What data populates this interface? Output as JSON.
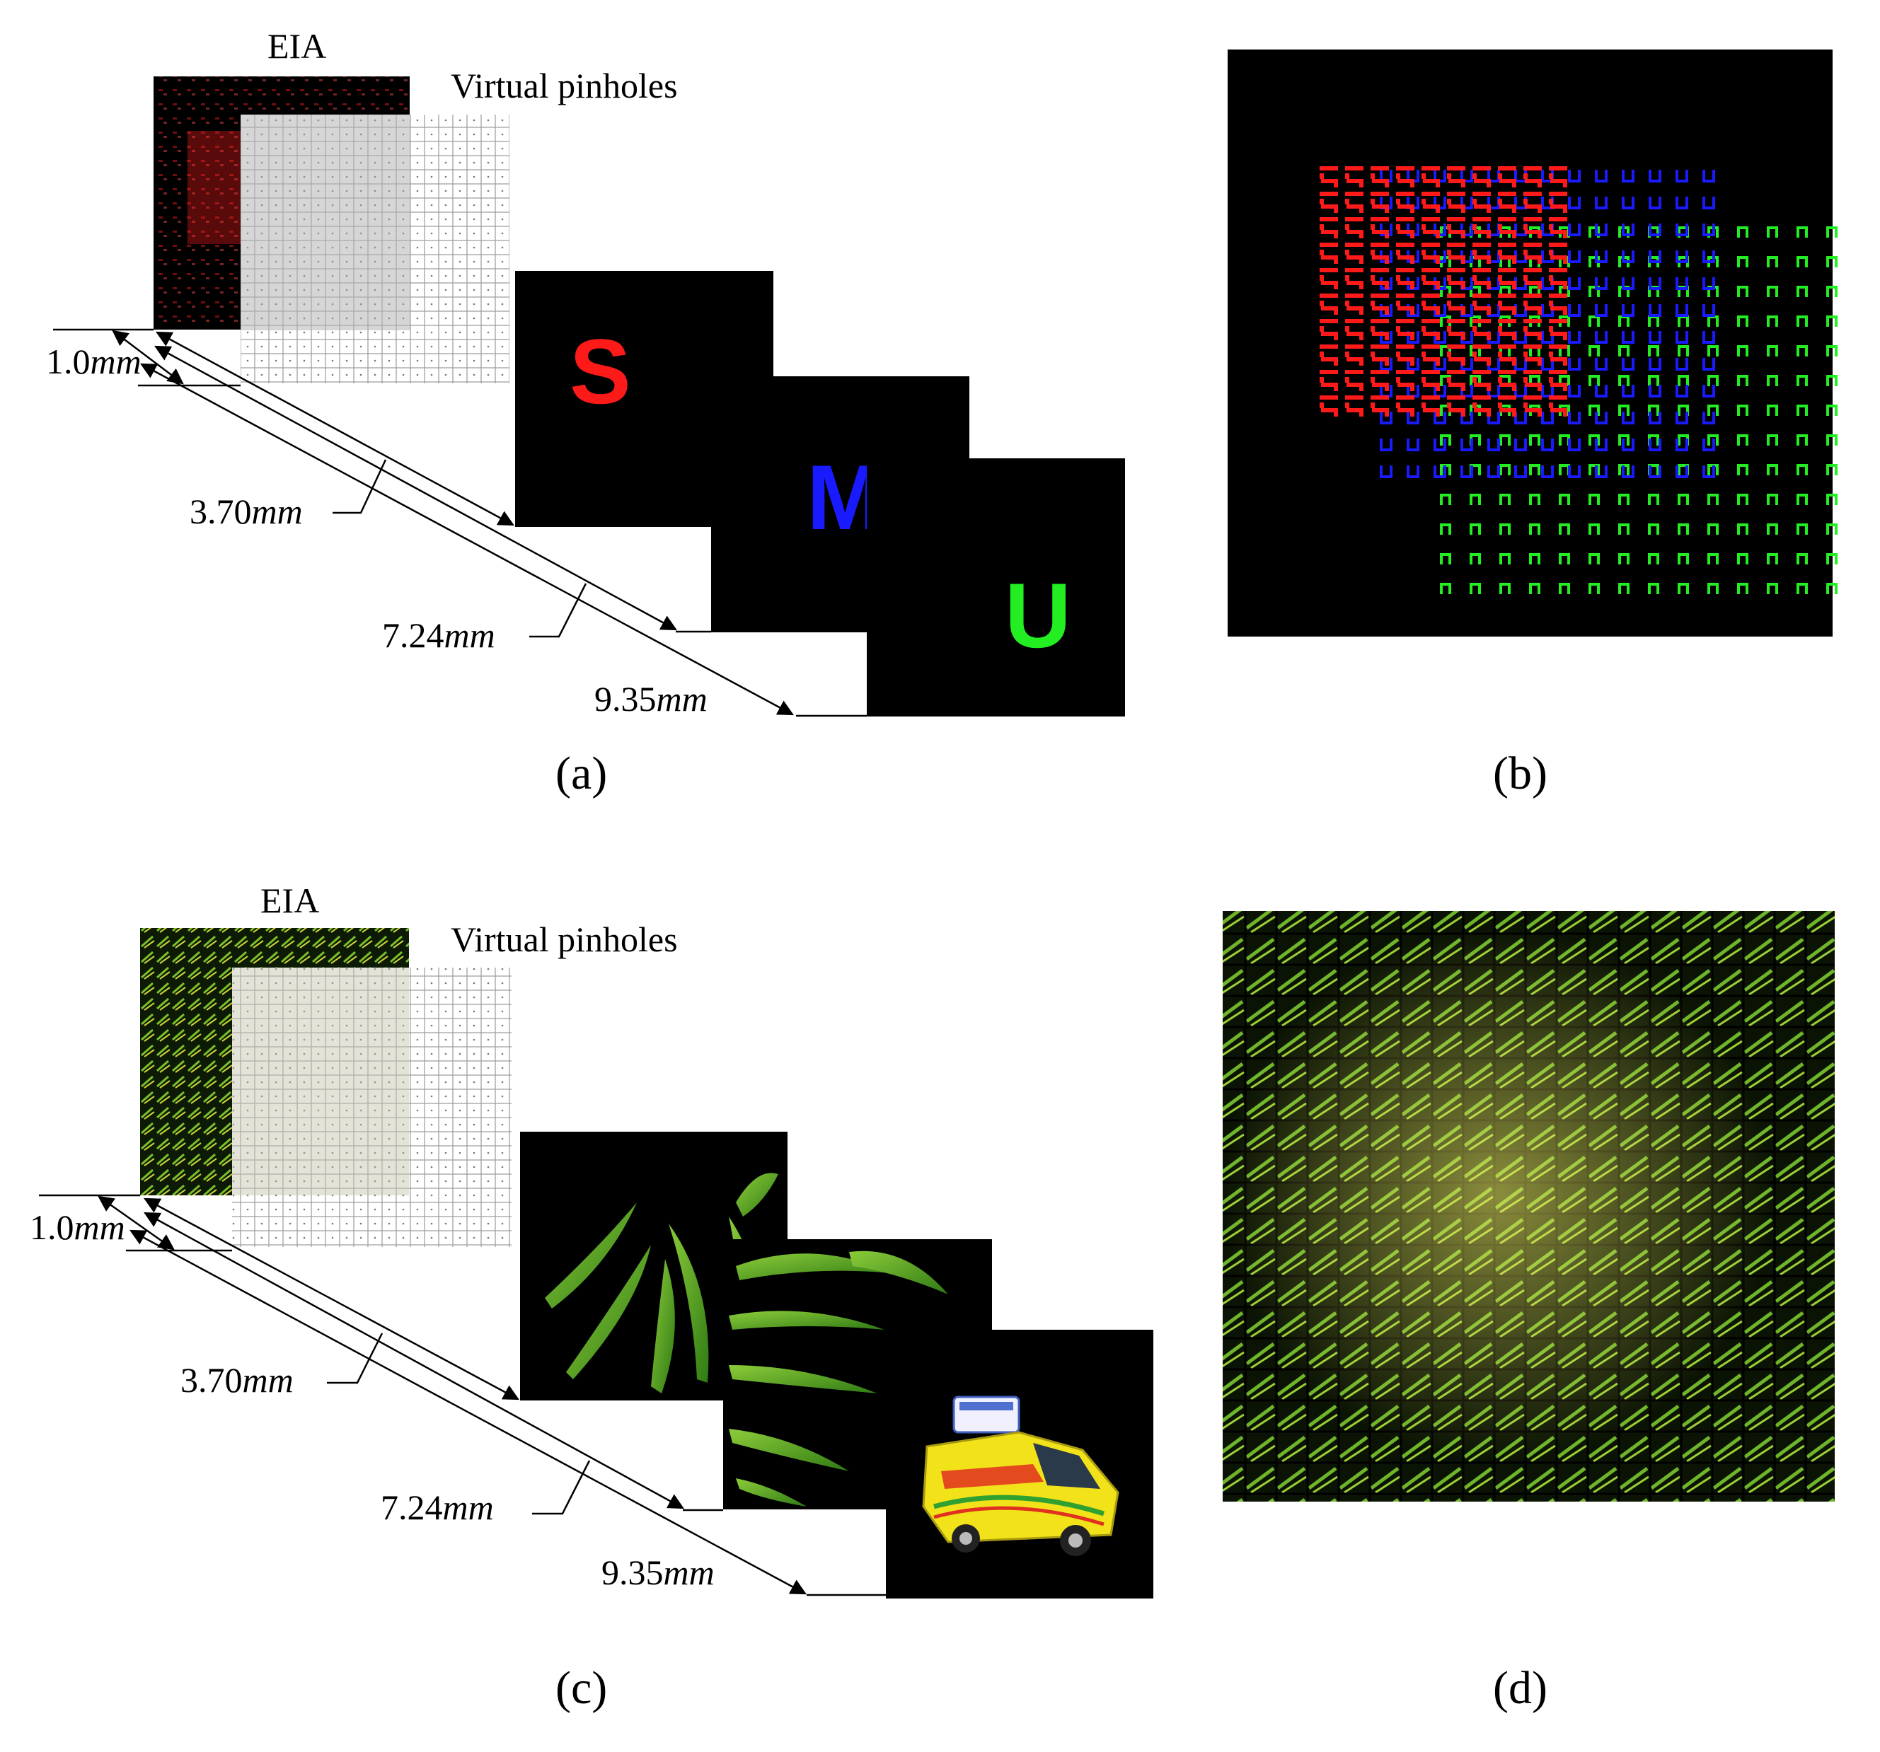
{
  "panels": {
    "a": {
      "label": "(a)",
      "eia_label": "EIA",
      "pinholes_label": "Virtual pinholes",
      "distances": [
        {
          "value": "1.0",
          "unit": "mm"
        },
        {
          "value": "3.70",
          "unit": "mm"
        },
        {
          "value": "7.24",
          "unit": "mm"
        },
        {
          "value": "9.35",
          "unit": "mm"
        }
      ],
      "objects": [
        {
          "letter": "S",
          "color": "#ff1a1a"
        },
        {
          "letter": "M",
          "color": "#1a1aff"
        },
        {
          "letter": "U",
          "color": "#22ee22"
        }
      ]
    },
    "b": {
      "label": "(b)"
    },
    "c": {
      "label": "(c)",
      "eia_label": "EIA",
      "pinholes_label": "Virtual pinholes",
      "distances": [
        {
          "value": "1.0",
          "unit": "mm"
        },
        {
          "value": "3.70",
          "unit": "mm"
        },
        {
          "value": "7.24",
          "unit": "mm"
        },
        {
          "value": "9.35",
          "unit": "mm"
        }
      ],
      "objects": [
        "leaves",
        "leaves",
        "toy-van"
      ]
    },
    "d": {
      "label": "(d)"
    }
  },
  "colors": {
    "red": "#ff1a1a",
    "blue": "#1a1aff",
    "green": "#22ee22",
    "leaf": "#5aa82a",
    "van_yellow": "#f2e21a"
  }
}
